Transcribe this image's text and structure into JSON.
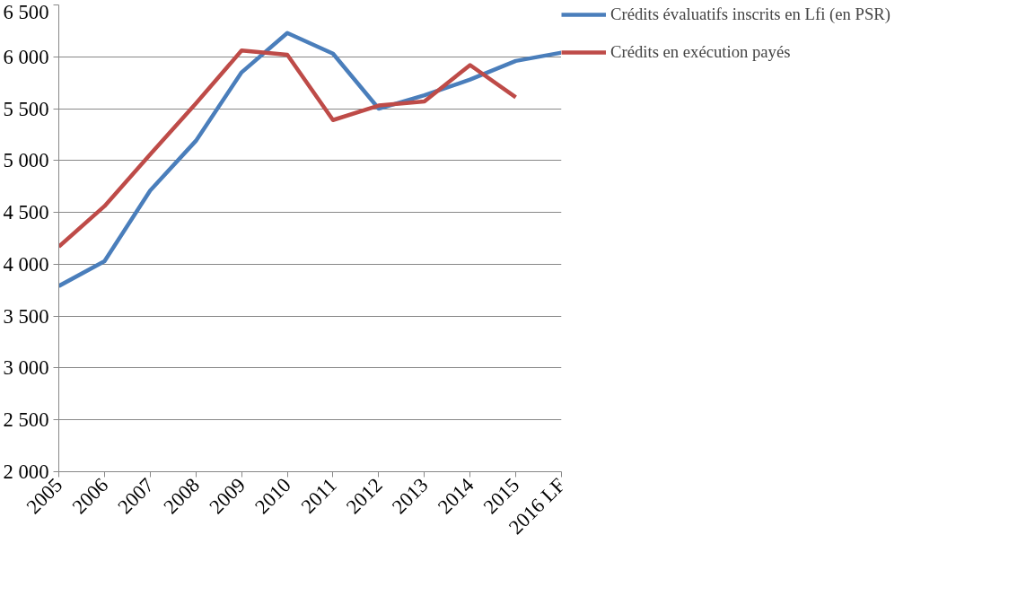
{
  "chart_data": {
    "type": "line",
    "categories": [
      "2005",
      "2006",
      "2007",
      "2008",
      "2009",
      "2010",
      "2011",
      "2012",
      "2013",
      "2014",
      "2015",
      "2016 LF"
    ],
    "series": [
      {
        "name": "Crédits évaluatifs inscrits en Lfi (en PSR)",
        "color": "#4a7ebb",
        "values": [
          3790,
          4030,
          4710,
          5190,
          5850,
          6230,
          6030,
          5500,
          5630,
          5780,
          5960,
          6040
        ]
      },
      {
        "name": "Crédits en exécution payés",
        "color": "#be4b48",
        "values": [
          4170,
          4560,
          5060,
          5550,
          6060,
          6020,
          5390,
          5530,
          5570,
          5920,
          5610,
          null
        ]
      }
    ],
    "ylim": [
      2000,
      6500
    ],
    "yticks": [
      {
        "value": 2000,
        "label": "2 000"
      },
      {
        "value": 2500,
        "label": "2 500"
      },
      {
        "value": 3000,
        "label": "3 000"
      },
      {
        "value": 3500,
        "label": "3 500"
      },
      {
        "value": 4000,
        "label": "4 000"
      },
      {
        "value": 4500,
        "label": "4 500"
      },
      {
        "value": 5000,
        "label": "5 000"
      },
      {
        "value": 5500,
        "label": "5 500"
      },
      {
        "value": 6000,
        "label": "6 000"
      },
      {
        "value": 6500,
        "label": "6 500"
      }
    ],
    "grid": "y",
    "legend": "right",
    "marker": "none",
    "line_style": "solid"
  }
}
